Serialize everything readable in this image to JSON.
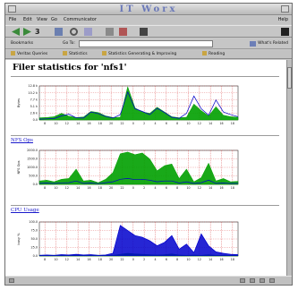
{
  "window": {
    "title": "IT Worx"
  },
  "menu": [
    "File",
    "Edit",
    "View",
    "Go",
    "Communicator"
  ],
  "menu_help": "Help",
  "toolbar_icons": [
    "back-icon",
    "forward-icon",
    "reload-icon",
    "home-icon",
    "search-icon",
    "images-icon",
    "print-icon",
    "security-icon",
    "stop-icon"
  ],
  "location": {
    "bookmarks_label": "Bookmarks",
    "goto_label": "Go To:",
    "url": "",
    "related_label": "What's Related"
  },
  "personal_toolbar": [
    "Veritas Queries",
    "Statistics",
    "Statistics Generating & Improving",
    "Reading"
  ],
  "page": {
    "title": "Filer statistics for 'nfs1'",
    "sections": [
      {
        "link": "",
        "chart_index": 0
      },
      {
        "link": "NFS Ops",
        "chart_index": 1
      },
      {
        "link": "CPU Usage",
        "chart_index": 2
      }
    ]
  },
  "chart_data": [
    {
      "type": "area",
      "title": "",
      "ylabel": "Bytes",
      "ylim": [
        0,
        12800
      ],
      "yticks": [
        "12.8 k",
        "10.2 k",
        "7.7 k",
        "5.1 k",
        "2.6 k",
        "0.0"
      ],
      "xticks": [
        "8",
        "10",
        "12",
        "14",
        "16",
        "18",
        "20",
        "22",
        "0",
        "2",
        "4",
        "6",
        "8",
        "10",
        "12",
        "14",
        "16",
        "18"
      ],
      "series": [
        {
          "color": "#00a000",
          "values": [
            800,
            900,
            1200,
            2500,
            1400,
            900,
            1100,
            3200,
            2800,
            1500,
            900,
            1000,
            12500,
            4500,
            3000,
            2500,
            4800,
            3000,
            1200,
            800,
            1000,
            6000,
            3500,
            1500,
            5000,
            1800,
            1200,
            1000
          ]
        },
        {
          "color": "#0000cc",
          "values": [
            300,
            400,
            500,
            1500,
            2200,
            800,
            700,
            3000,
            2400,
            1300,
            700,
            2000,
            10500,
            4200,
            3200,
            2000,
            4400,
            2800,
            1000,
            600,
            2500,
            9000,
            4200,
            1800,
            7500,
            3000,
            2000,
            1200
          ]
        }
      ]
    },
    {
      "type": "area",
      "title": "",
      "ylabel": "NFS Ops",
      "ylim": [
        0,
        2000
      ],
      "yticks": [
        "2000.0",
        "1500.0",
        "1000.0",
        "500.0",
        "0.0"
      ],
      "xticks": [
        "8",
        "10",
        "12",
        "14",
        "16",
        "18",
        "20",
        "22",
        "0",
        "2",
        "4",
        "6",
        "8",
        "10",
        "12",
        "14",
        "16",
        "18"
      ],
      "series": [
        {
          "color": "#00a000",
          "values": [
            200,
            250,
            150,
            300,
            350,
            900,
            200,
            250,
            100,
            300,
            700,
            1800,
            1900,
            1750,
            1850,
            1500,
            800,
            1100,
            1200,
            350,
            900,
            150,
            400,
            1250,
            200,
            350,
            150,
            180
          ]
        },
        {
          "color": "#0000cc",
          "values": [
            60,
            80,
            50,
            90,
            100,
            200,
            60,
            80,
            40,
            100,
            150,
            300,
            350,
            280,
            300,
            250,
            150,
            200,
            200,
            80,
            150,
            50,
            100,
            250,
            60,
            80,
            50,
            60
          ]
        }
      ]
    },
    {
      "type": "area",
      "title": "",
      "ylabel": "busy %",
      "ylim": [
        0,
        100
      ],
      "yticks": [
        "100.0",
        "75.0",
        "50.0",
        "25.0",
        "0.0"
      ],
      "xticks": [
        "8",
        "10",
        "12",
        "14",
        "16",
        "18",
        "20",
        "22",
        "0",
        "2",
        "4",
        "6",
        "8",
        "10",
        "12",
        "14",
        "16",
        "18"
      ],
      "series": [
        {
          "color": "#00a000",
          "values": [
            2,
            2,
            2,
            3,
            2,
            2,
            2,
            3,
            2,
            2,
            2,
            5,
            8,
            6,
            5,
            4,
            3,
            4,
            6,
            3,
            2,
            3,
            2,
            4,
            2,
            2,
            2,
            2
          ]
        },
        {
          "color": "#0000cc",
          "values": [
            2,
            3,
            2,
            4,
            3,
            5,
            3,
            4,
            2,
            3,
            8,
            90,
            75,
            60,
            55,
            45,
            30,
            40,
            60,
            20,
            35,
            10,
            65,
            30,
            12,
            8,
            5,
            4
          ]
        }
      ]
    }
  ],
  "colors": {
    "link": "#1a1acc",
    "title_bar_text": "#6a78b8",
    "chart_bg": "#ffffff",
    "grid": "#cc0000"
  }
}
